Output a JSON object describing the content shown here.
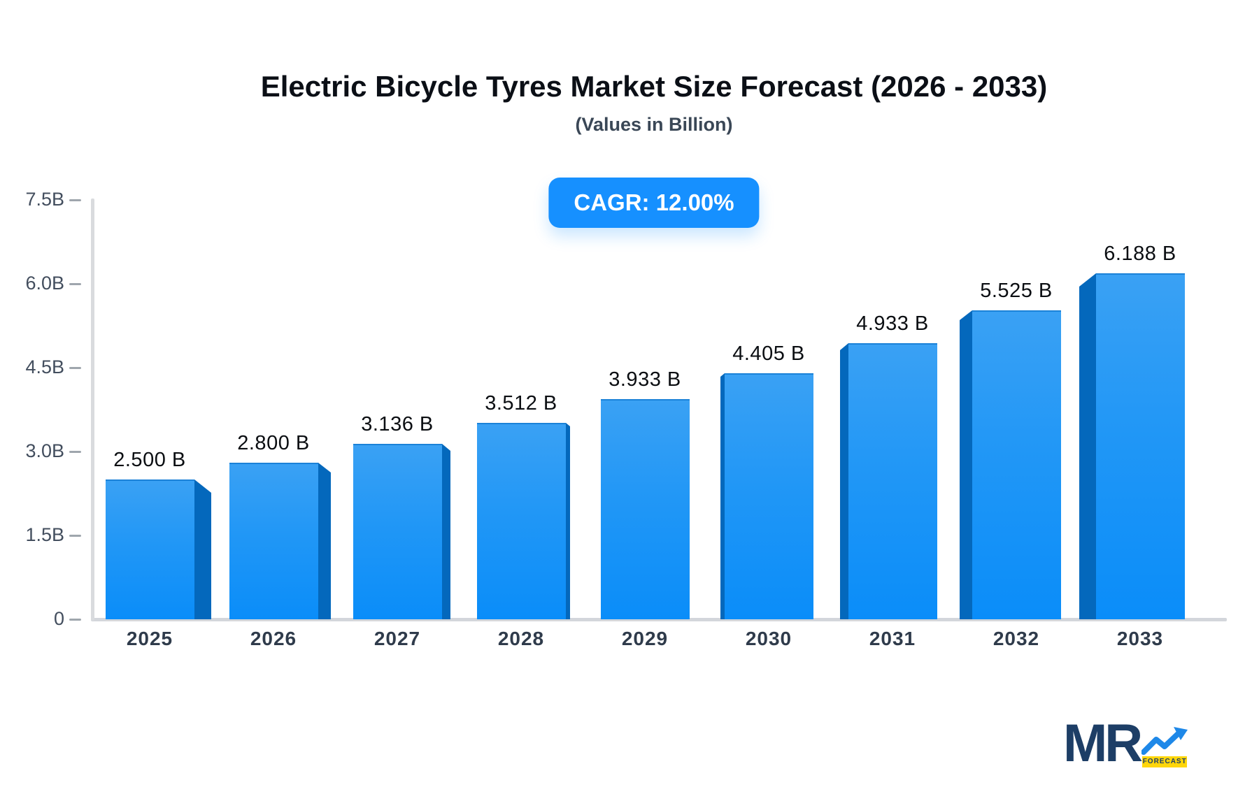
{
  "header": {
    "title": "Electric Bicycle Tyres Market Size Forecast (2026 - 2033)",
    "subtitle": "(Values in Billion)",
    "badge": "CAGR: 12.00%"
  },
  "chart_data": {
    "type": "bar",
    "title": "Electric Bicycle Tyres Market Size Forecast (2026 - 2033)",
    "subtitle": "(Values in Billion)",
    "cagr_label": "CAGR: 12.00%",
    "categories": [
      "2025",
      "2026",
      "2027",
      "2028",
      "2029",
      "2030",
      "2031",
      "2032",
      "2033"
    ],
    "values": [
      2.5,
      2.8,
      3.136,
      3.512,
      3.933,
      4.405,
      4.933,
      5.525,
      6.188
    ],
    "value_labels": [
      "2.500 B",
      "2.800 B",
      "3.136 B",
      "3.512 B",
      "3.933 B",
      "4.405 B",
      "4.933 B",
      "5.525 B",
      "6.188 B"
    ],
    "yticks": [
      {
        "value": 0.0,
        "label": "0"
      },
      {
        "value": 1.5,
        "label": "1.5B"
      },
      {
        "value": 3.0,
        "label": "3.0B"
      },
      {
        "value": 4.5,
        "label": "4.5B"
      },
      {
        "value": 6.0,
        "label": "6.0B"
      },
      {
        "value": 7.5,
        "label": "7.5B"
      }
    ],
    "ylim": [
      0,
      7.5
    ],
    "grid": false,
    "legend": false,
    "colors": {
      "bar_face_top": "#3aa1f4",
      "bar_face_mid": "#2197f6",
      "bar_face_bottom": "#0a8df9",
      "bar_face_top_edge": "#1b82d8",
      "bar_side": "#0468bc",
      "badge_blue": "#1690ff",
      "axis_gray": "#d9dbde",
      "baseline_gray": "#d3d6db",
      "tick_dash_gray": "#9fa6ad"
    }
  },
  "logo": {
    "mr_text": "MR",
    "forecast_text": "FORECAST",
    "navy": "#1d3e66",
    "arrow_blue": "#1e88e8",
    "yellow": "#ffd60a"
  }
}
